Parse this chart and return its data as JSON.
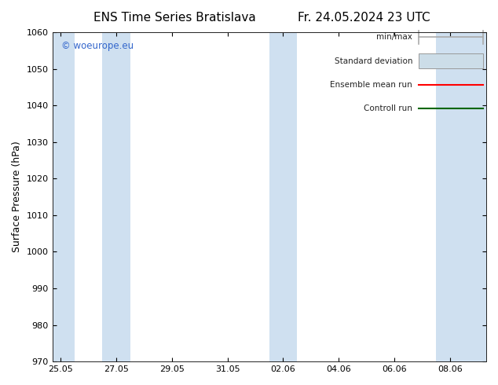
{
  "title_left": "ENS Time Series Bratislava",
  "title_right": "Fr. 24.05.2024 23 UTC",
  "ylabel": "Surface Pressure (hPa)",
  "ylim": [
    970,
    1060
  ],
  "yticks": [
    970,
    980,
    990,
    1000,
    1010,
    1020,
    1030,
    1040,
    1050,
    1060
  ],
  "xtick_labels": [
    "25.05",
    "27.05",
    "29.05",
    "31.05",
    "02.06",
    "04.06",
    "06.06",
    "08.06"
  ],
  "xtick_positions": [
    0,
    2,
    4,
    6,
    8,
    10,
    12,
    14
  ],
  "xlim": [
    -0.3,
    15.3
  ],
  "shaded_bands": [
    {
      "xmin": -0.3,
      "xmax": 0.5
    },
    {
      "xmin": 1.5,
      "xmax": 2.5
    },
    {
      "xmin": 7.5,
      "xmax": 8.5
    },
    {
      "xmin": 13.5,
      "xmax": 15.3
    }
  ],
  "shaded_color": "#cfe0f0",
  "background_color": "#ffffff",
  "plot_bg_color": "#ffffff",
  "watermark_text": "© woeurope.eu",
  "watermark_color": "#3366cc",
  "legend_entries": [
    {
      "label": "min/max",
      "color": "#aaaaaa",
      "style": "errorbar"
    },
    {
      "label": "Standard deviation",
      "color": "#ccdde8",
      "style": "fillbar"
    },
    {
      "label": "Ensemble mean run",
      "color": "#ff0000",
      "style": "line"
    },
    {
      "label": "Controll run",
      "color": "#006600",
      "style": "line"
    }
  ],
  "title_fontsize": 11,
  "tick_fontsize": 8,
  "ylabel_fontsize": 9,
  "legend_fontsize": 7.5,
  "figsize": [
    6.34,
    4.9
  ],
  "dpi": 100
}
